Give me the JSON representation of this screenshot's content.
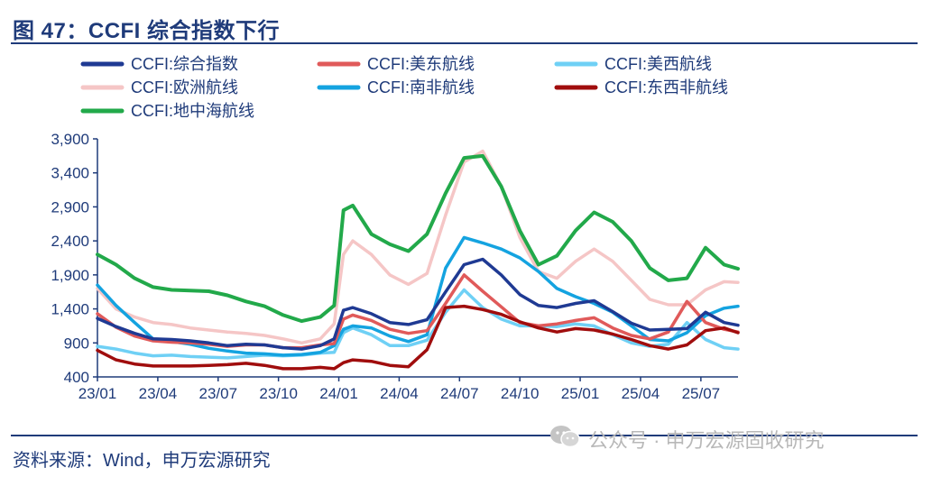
{
  "header": {
    "title": "图 47：CCFI 综合指数下行"
  },
  "footer": {
    "source": "资料来源：Wind，申万宏源研究",
    "watermark": "公众号 · 申万宏源固收研究",
    "watermark_icon": "wechat-icon"
  },
  "chart_data": {
    "type": "line",
    "title": "",
    "xlabel": "",
    "ylabel": "",
    "ylim": [
      400,
      3900
    ],
    "yticks": [
      400,
      900,
      1400,
      1900,
      2400,
      2900,
      3400,
      3900
    ],
    "ytick_labels": [
      "400",
      "900",
      "1,400",
      "1,900",
      "2,400",
      "2,900",
      "3,400",
      "3,900"
    ],
    "xlim": [
      "2023-01-06",
      "2025-08-29"
    ],
    "xtick_labels": [
      "23/01",
      "23/04",
      "23/07",
      "23/10",
      "24/01",
      "24/04",
      "24/07",
      "24/10",
      "25/01",
      "25/04",
      "25/07"
    ],
    "xtick_dates": [
      "2023-01-06",
      "2023-04-07",
      "2023-07-07",
      "2023-10-06",
      "2024-01-05",
      "2024-04-05",
      "2024-07-05",
      "2024-10-04",
      "2025-01-03",
      "2025-04-04",
      "2025-07-04"
    ],
    "grid": false,
    "legend_position": "top",
    "dates": [
      "2023-01-06",
      "2023-02-03",
      "2023-03-03",
      "2023-03-31",
      "2023-04-28",
      "2023-05-26",
      "2023-06-23",
      "2023-07-21",
      "2023-08-18",
      "2023-09-15",
      "2023-10-13",
      "2023-11-10",
      "2023-12-08",
      "2023-12-29",
      "2024-01-12",
      "2024-01-26",
      "2024-02-23",
      "2024-03-22",
      "2024-04-19",
      "2024-05-17",
      "2024-06-14",
      "2024-07-12",
      "2024-08-09",
      "2024-09-06",
      "2024-10-04",
      "2024-11-01",
      "2024-11-29",
      "2024-12-27",
      "2025-01-24",
      "2025-02-21",
      "2025-03-21",
      "2025-04-18",
      "2025-05-16",
      "2025-06-13",
      "2025-07-11",
      "2025-08-08",
      "2025-08-29"
    ],
    "series": [
      {
        "name": "CCFI:综合指数",
        "color": "#1f3a93",
        "width": 3.5,
        "values": [
          1260,
          1140,
          1040,
          960,
          950,
          930,
          900,
          860,
          880,
          870,
          830,
          810,
          860,
          960,
          1380,
          1420,
          1330,
          1200,
          1170,
          1240,
          1650,
          2050,
          2130,
          1900,
          1610,
          1450,
          1420,
          1480,
          1520,
          1360,
          1190,
          1090,
          1100,
          1110,
          1350,
          1200,
          1160
        ]
      },
      {
        "name": "CCFI:美东航线",
        "color": "#e05a5a",
        "width": 3.5,
        "values": [
          1330,
          1130,
          1000,
          930,
          910,
          900,
          880,
          850,
          870,
          870,
          830,
          830,
          870,
          890,
          1250,
          1310,
          1230,
          1100,
          1040,
          1080,
          1480,
          1900,
          1660,
          1430,
          1200,
          1150,
          1180,
          1230,
          1270,
          1120,
          1010,
          960,
          1060,
          1510,
          1200,
          1100,
          1060
        ]
      },
      {
        "name": "CCFI:美西航线",
        "color": "#6fd0f5",
        "width": 3.5,
        "values": [
          850,
          810,
          750,
          710,
          720,
          700,
          690,
          680,
          700,
          720,
          710,
          720,
          750,
          760,
          1050,
          1120,
          1020,
          860,
          860,
          940,
          1350,
          1680,
          1420,
          1250,
          1150,
          1150,
          1140,
          1180,
          1150,
          1020,
          900,
          850,
          880,
          1200,
          950,
          830,
          810
        ]
      },
      {
        "name": "CCFI:欧洲航线",
        "color": "#f5c6c6",
        "width": 3.5,
        "values": [
          1700,
          1400,
          1280,
          1200,
          1170,
          1120,
          1090,
          1060,
          1040,
          1010,
          960,
          900,
          960,
          1180,
          2200,
          2400,
          2200,
          1900,
          1760,
          1920,
          2780,
          3560,
          3720,
          3200,
          2450,
          1950,
          1850,
          2100,
          2280,
          2100,
          1820,
          1540,
          1460,
          1460,
          1680,
          1800,
          1790
        ]
      },
      {
        "name": "CCFI:南非航线",
        "color": "#14a3e0",
        "width": 3.5,
        "values": [
          1750,
          1450,
          1200,
          960,
          920,
          880,
          820,
          780,
          750,
          740,
          720,
          730,
          760,
          860,
          1100,
          1150,
          1120,
          1000,
          920,
          1020,
          2000,
          2450,
          2370,
          2280,
          2150,
          1950,
          1700,
          1580,
          1480,
          1350,
          1150,
          950,
          930,
          1050,
          1300,
          1410,
          1440
        ]
      },
      {
        "name": "CCFI:东西非航线",
        "color": "#a00d0d",
        "width": 3.5,
        "values": [
          790,
          650,
          590,
          560,
          560,
          560,
          570,
          580,
          600,
          570,
          520,
          520,
          540,
          520,
          610,
          650,
          630,
          570,
          550,
          800,
          1420,
          1440,
          1390,
          1320,
          1210,
          1120,
          1060,
          1110,
          1090,
          1030,
          950,
          860,
          810,
          870,
          1080,
          1120,
          1050
        ]
      },
      {
        "name": "CCFI:地中海航线",
        "color": "#22a94a",
        "width": 4,
        "values": [
          2200,
          2050,
          1850,
          1720,
          1680,
          1670,
          1660,
          1600,
          1510,
          1440,
          1310,
          1220,
          1280,
          1450,
          2850,
          2920,
          2500,
          2350,
          2250,
          2500,
          3100,
          3620,
          3650,
          3200,
          2550,
          2050,
          2180,
          2550,
          2820,
          2680,
          2400,
          2000,
          1820,
          1850,
          2300,
          2050,
          1990
        ]
      }
    ]
  }
}
